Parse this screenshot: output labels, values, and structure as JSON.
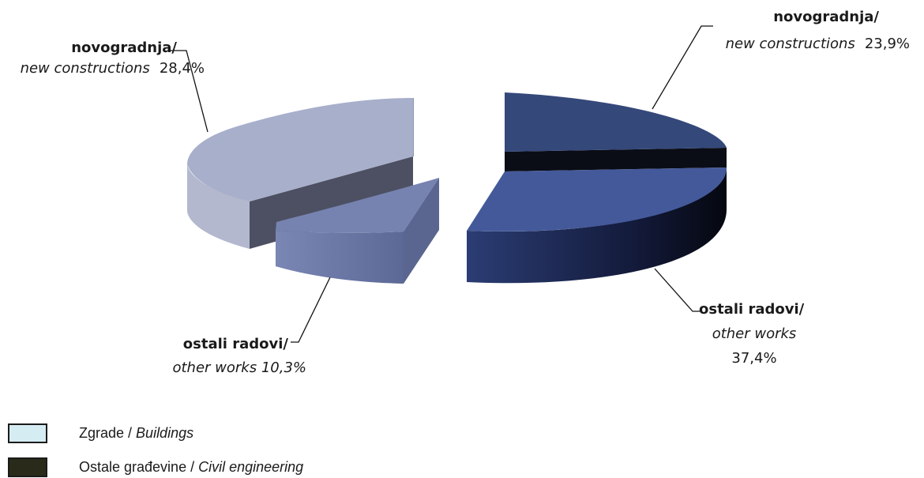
{
  "chart_data": {
    "type": "pie",
    "variant": "3d-exploded-double",
    "groups": [
      {
        "name": "Zgrade / Buildings",
        "slices": [
          {
            "label_bold": "novogradnja/",
            "label_italic": "new constructions",
            "value_text": "28,4%",
            "value": 28.4,
            "color": "#a8afcb"
          },
          {
            "label_bold": "ostali radovi/",
            "label_italic": "other works",
            "value_text": "10,3%",
            "value": 10.3,
            "color": "#6f7dab"
          }
        ]
      },
      {
        "name": "Ostale građevine / Civil engineering",
        "slices": [
          {
            "label_bold": "novogradnja/",
            "label_italic": "new constructions",
            "value_text": "23,9%",
            "value": 23.9,
            "color": "#34487a"
          },
          {
            "label_bold": "ostali radovi/",
            "label_italic": "other works",
            "value_text": "37,4%",
            "value": 37.4,
            "color": "#44599a"
          }
        ]
      }
    ]
  },
  "labels": {
    "ul_bold": "novogradnja/",
    "ul_italic": "new constructions",
    "ul_value": "28,4%",
    "ur_bold": "novogradnja/",
    "ur_italic": "new constructions",
    "ur_value": "23,9%",
    "ll_bold": "ostali radovi/",
    "ll_italic": "other works 10,3%",
    "lr_bold": "ostali radovi/",
    "lr_italic": "other works",
    "lr_value": "37,4%"
  },
  "legend": {
    "items": [
      {
        "text": "Zgrade / ",
        "italic": "Buildings",
        "color": "#d4ecf2"
      },
      {
        "text": "Ostale građevine / ",
        "italic": "Civil engineering",
        "color": "#2a2a1a"
      }
    ]
  }
}
